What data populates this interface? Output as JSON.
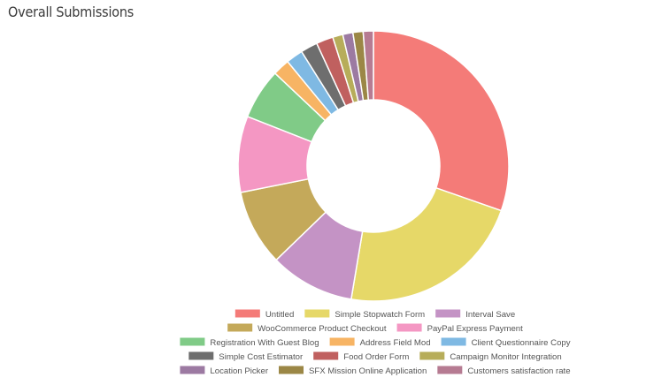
{
  "title": "Overall Submissions",
  "chart_data": {
    "type": "pie",
    "title": "Overall Submissions",
    "donut": true,
    "legend_position": "bottom",
    "series": [
      {
        "name": "Untitled",
        "value": 30.0,
        "color": "#f47b78"
      },
      {
        "name": "Simple Stopwatch Form",
        "value": 22.0,
        "color": "#e6d868"
      },
      {
        "name": "Interval Save",
        "value": 10.0,
        "color": "#c493c5"
      },
      {
        "name": "WooCommerce Product Checkout",
        "value": 9.0,
        "color": "#c4a95a"
      },
      {
        "name": "PayPal Express Payment",
        "value": 9.0,
        "color": "#f497c3"
      },
      {
        "name": "Registration With Guest Blog",
        "value": 6.0,
        "color": "#80cb87"
      },
      {
        "name": "Address Field Mod",
        "value": 2.0,
        "color": "#f7b464"
      },
      {
        "name": "Client Questionnaire Copy",
        "value": 2.0,
        "color": "#7fb9e3"
      },
      {
        "name": "Simple Cost Estimator",
        "value": 2.0,
        "color": "#6e6e6e"
      },
      {
        "name": "Food Order Form",
        "value": 2.0,
        "color": "#c0605f"
      },
      {
        "name": "Campaign Monitor Integration",
        "value": 1.2,
        "color": "#b7ad5a"
      },
      {
        "name": "Location Picker",
        "value": 1.2,
        "color": "#9c7aa2"
      },
      {
        "name": "SFX Mission Online Application",
        "value": 1.2,
        "color": "#9b8746"
      },
      {
        "name": "Customers satisfaction rate",
        "value": 1.2,
        "color": "#b67b92"
      }
    ]
  }
}
